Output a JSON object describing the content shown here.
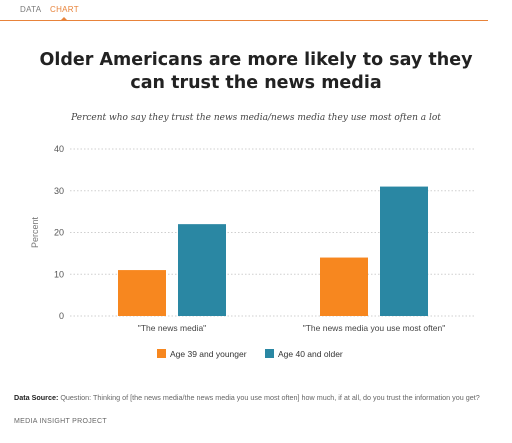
{
  "tabs": [
    {
      "label": "DATA"
    },
    {
      "label": "CHART"
    }
  ],
  "colors": {
    "accent": "#e8833a",
    "series_young": "#f7871f",
    "series_old": "#2a87a3"
  },
  "chart_data": {
    "type": "bar",
    "title": "Older Americans are more likely to say they can trust the news media",
    "subtitle": "Percent who say they trust the news media/news media they use most often a lot",
    "categories": [
      "\"The news media\"",
      "\"The news media you use most often\""
    ],
    "series": [
      {
        "name": "Age 39 and younger",
        "values": [
          11,
          14
        ]
      },
      {
        "name": "Age 40 and older",
        "values": [
          22,
          31
        ]
      }
    ],
    "ylabel": "Percent",
    "ylim": [
      0,
      40
    ],
    "yticks": [
      0,
      10,
      20,
      30,
      40
    ],
    "grid": true,
    "legend": "bottom-center"
  },
  "footer": {
    "source_label": "Data Source:",
    "source_text": "Question: Thinking of [the news media/the news media you use most often] how much, if at all, do you trust the information you get?",
    "org": "MEDIA INSIGHT PROJECT"
  }
}
